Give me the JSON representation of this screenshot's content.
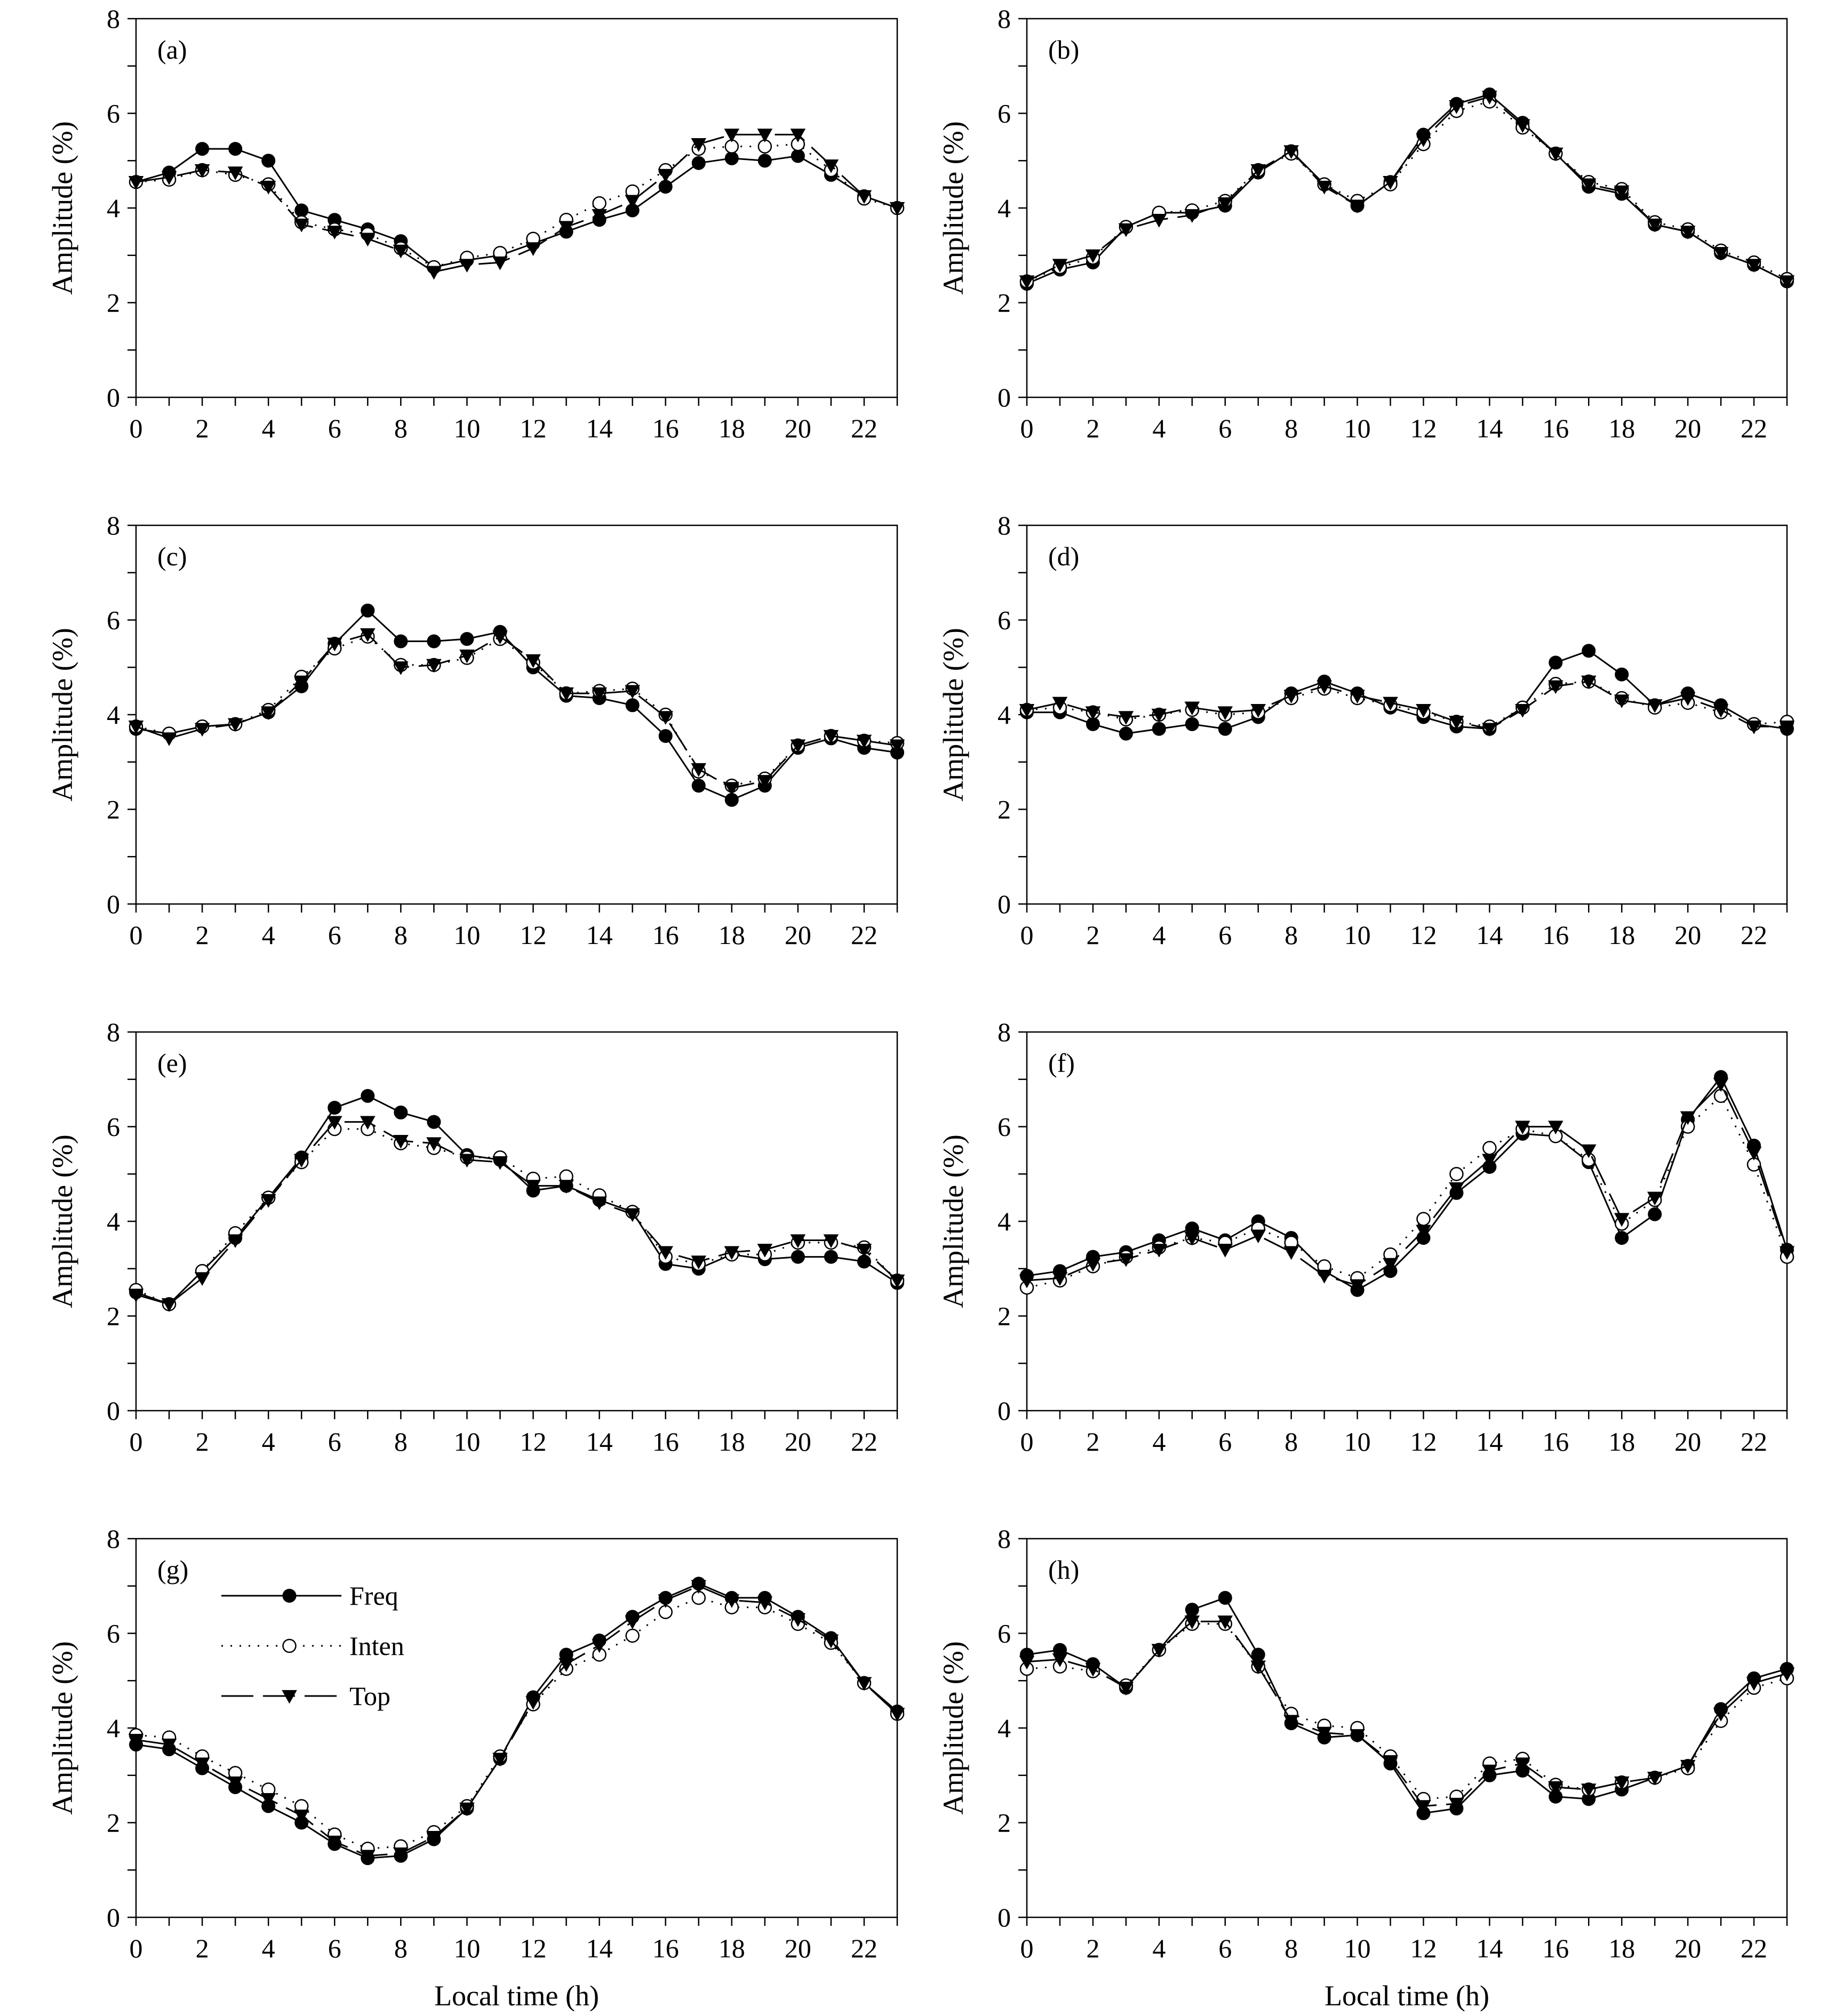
{
  "figure": {
    "x_axis_title": "Local time (h)",
    "y_axis_title": "Amplitude (%)",
    "legend": [
      {
        "key": "freq",
        "label": "Freq"
      },
      {
        "key": "inten",
        "label": "Inten"
      },
      {
        "key": "top",
        "label": "Top"
      }
    ]
  },
  "chart_data": [
    {
      "type": "line",
      "panel": "(a)",
      "x": [
        0,
        1,
        2,
        3,
        4,
        5,
        6,
        7,
        8,
        9,
        10,
        11,
        12,
        13,
        14,
        15,
        16,
        17,
        18,
        19,
        20,
        21,
        22,
        23
      ],
      "xlim": [
        0,
        23
      ],
      "ylim": [
        0,
        8
      ],
      "xticks": [
        "0",
        "2",
        "4",
        "6",
        "8",
        "10",
        "12",
        "14",
        "16",
        "18",
        "20",
        "22"
      ],
      "yticks": [
        "0",
        "2",
        "4",
        "6",
        "8"
      ],
      "xlabel": "",
      "ylabel": "Amplitude (%)",
      "series": [
        {
          "name": "Freq",
          "values": [
            4.55,
            4.75,
            5.25,
            5.25,
            5.0,
            3.95,
            3.75,
            3.55,
            3.3,
            2.75,
            2.9,
            3.0,
            3.25,
            3.5,
            3.75,
            3.95,
            4.45,
            4.95,
            5.05,
            5.0,
            5.1,
            4.7,
            4.25,
            4.0
          ]
        },
        {
          "name": "Inten",
          "values": [
            4.55,
            4.6,
            4.8,
            4.7,
            4.5,
            3.7,
            3.55,
            3.45,
            3.15,
            2.75,
            2.95,
            3.05,
            3.35,
            3.75,
            4.1,
            4.35,
            4.8,
            5.25,
            5.3,
            5.3,
            5.35,
            4.8,
            4.2,
            4.0
          ]
        },
        {
          "name": "Top",
          "values": [
            4.55,
            4.65,
            4.8,
            4.75,
            4.45,
            3.65,
            3.5,
            3.35,
            3.1,
            2.65,
            2.8,
            2.85,
            3.15,
            3.6,
            3.85,
            4.15,
            4.7,
            5.35,
            5.55,
            5.55,
            5.55,
            4.9,
            4.25,
            4.0
          ]
        }
      ]
    },
    {
      "type": "line",
      "panel": "(b)",
      "x": [
        0,
        1,
        2,
        3,
        4,
        5,
        6,
        7,
        8,
        9,
        10,
        11,
        12,
        13,
        14,
        15,
        16,
        17,
        18,
        19,
        20,
        21,
        22,
        23
      ],
      "xlim": [
        0,
        23
      ],
      "ylim": [
        0,
        8
      ],
      "xticks": [
        "0",
        "2",
        "4",
        "6",
        "8",
        "10",
        "12",
        "14",
        "16",
        "18",
        "20",
        "22"
      ],
      "yticks": [
        "0",
        "2",
        "4",
        "6",
        "8"
      ],
      "xlabel": "",
      "ylabel": "Amplitude (%)",
      "series": [
        {
          "name": "Freq",
          "values": [
            2.4,
            2.7,
            2.85,
            3.6,
            3.9,
            3.9,
            4.05,
            4.75,
            5.2,
            4.5,
            4.05,
            4.55,
            5.55,
            6.2,
            6.4,
            5.8,
            5.15,
            4.45,
            4.3,
            3.65,
            3.5,
            3.05,
            2.8,
            2.45
          ]
        },
        {
          "name": "Inten",
          "values": [
            2.45,
            2.75,
            2.95,
            3.6,
            3.9,
            3.95,
            4.15,
            4.8,
            5.15,
            4.5,
            4.15,
            4.5,
            5.35,
            6.05,
            6.25,
            5.7,
            5.15,
            4.55,
            4.4,
            3.7,
            3.55,
            3.1,
            2.85,
            2.5
          ]
        },
        {
          "name": "Top",
          "values": [
            2.45,
            2.8,
            3.0,
            3.55,
            3.75,
            3.85,
            4.1,
            4.8,
            5.2,
            4.45,
            4.05,
            4.55,
            5.45,
            6.15,
            6.35,
            5.75,
            5.15,
            4.5,
            4.35,
            3.65,
            3.5,
            3.05,
            2.8,
            2.45
          ]
        }
      ]
    },
    {
      "type": "line",
      "panel": "(c)",
      "x": [
        0,
        1,
        2,
        3,
        4,
        5,
        6,
        7,
        8,
        9,
        10,
        11,
        12,
        13,
        14,
        15,
        16,
        17,
        18,
        19,
        20,
        21,
        22,
        23
      ],
      "xlim": [
        0,
        23
      ],
      "ylim": [
        0,
        8
      ],
      "xticks": [
        "0",
        "2",
        "4",
        "6",
        "8",
        "10",
        "12",
        "14",
        "16",
        "18",
        "20",
        "22"
      ],
      "yticks": [
        "0",
        "2",
        "4",
        "6",
        "8"
      ],
      "xlabel": "",
      "ylabel": "Amplitude (%)",
      "series": [
        {
          "name": "Freq",
          "values": [
            3.7,
            3.6,
            3.75,
            3.8,
            4.05,
            4.6,
            5.5,
            6.2,
            5.55,
            5.55,
            5.6,
            5.75,
            5.0,
            4.4,
            4.35,
            4.2,
            3.55,
            2.5,
            2.2,
            2.5,
            3.3,
            3.5,
            3.3,
            3.2
          ]
        },
        {
          "name": "Inten",
          "values": [
            3.75,
            3.6,
            3.75,
            3.8,
            4.1,
            4.8,
            5.4,
            5.65,
            5.05,
            5.05,
            5.2,
            5.6,
            5.1,
            4.45,
            4.5,
            4.55,
            4.0,
            2.8,
            2.5,
            2.65,
            3.35,
            3.55,
            3.45,
            3.4
          ]
        },
        {
          "name": "Top",
          "values": [
            3.75,
            3.5,
            3.7,
            3.8,
            4.05,
            4.7,
            5.5,
            5.7,
            5.0,
            5.05,
            5.25,
            5.65,
            5.15,
            4.45,
            4.45,
            4.5,
            3.95,
            2.85,
            2.45,
            2.6,
            3.35,
            3.55,
            3.45,
            3.35
          ]
        }
      ]
    },
    {
      "type": "line",
      "panel": "(d)",
      "x": [
        0,
        1,
        2,
        3,
        4,
        5,
        6,
        7,
        8,
        9,
        10,
        11,
        12,
        13,
        14,
        15,
        16,
        17,
        18,
        19,
        20,
        21,
        22,
        23
      ],
      "xlim": [
        0,
        23
      ],
      "ylim": [
        0,
        8
      ],
      "xticks": [
        "0",
        "2",
        "4",
        "6",
        "8",
        "10",
        "12",
        "14",
        "16",
        "18",
        "20",
        "22"
      ],
      "yticks": [
        "0",
        "2",
        "4",
        "6",
        "8"
      ],
      "xlabel": "",
      "ylabel": "Amplitude (%)",
      "series": [
        {
          "name": "Freq",
          "values": [
            4.05,
            4.05,
            3.8,
            3.6,
            3.7,
            3.8,
            3.7,
            3.95,
            4.45,
            4.7,
            4.45,
            4.15,
            3.95,
            3.75,
            3.7,
            4.15,
            5.1,
            5.35,
            4.85,
            4.2,
            4.45,
            4.2,
            3.8,
            3.7
          ]
        },
        {
          "name": "Inten",
          "values": [
            4.1,
            4.15,
            4.05,
            3.9,
            4.0,
            4.1,
            4.0,
            4.05,
            4.35,
            4.55,
            4.35,
            4.2,
            4.05,
            3.85,
            3.75,
            4.15,
            4.65,
            4.7,
            4.35,
            4.15,
            4.25,
            4.05,
            3.8,
            3.85
          ]
        },
        {
          "name": "Top",
          "values": [
            4.1,
            4.25,
            4.05,
            3.95,
            4.0,
            4.15,
            4.05,
            4.1,
            4.4,
            4.6,
            4.4,
            4.25,
            4.1,
            3.85,
            3.7,
            4.1,
            4.6,
            4.7,
            4.3,
            4.2,
            4.35,
            4.1,
            3.75,
            3.75
          ]
        }
      ]
    },
    {
      "type": "line",
      "panel": "(e)",
      "x": [
        0,
        1,
        2,
        3,
        4,
        5,
        6,
        7,
        8,
        9,
        10,
        11,
        12,
        13,
        14,
        15,
        16,
        17,
        18,
        19,
        20,
        21,
        22,
        23
      ],
      "xlim": [
        0,
        23
      ],
      "ylim": [
        0,
        8
      ],
      "xticks": [
        "0",
        "2",
        "4",
        "6",
        "8",
        "10",
        "12",
        "14",
        "16",
        "18",
        "20",
        "22"
      ],
      "yticks": [
        "0",
        "2",
        "4",
        "6",
        "8"
      ],
      "xlabel": "",
      "ylabel": "Amplitude (%)",
      "series": [
        {
          "name": "Freq",
          "values": [
            2.5,
            2.25,
            2.95,
            3.65,
            4.5,
            5.35,
            6.4,
            6.65,
            6.3,
            6.1,
            5.4,
            5.3,
            4.65,
            4.75,
            4.45,
            4.2,
            3.1,
            3.0,
            3.3,
            3.2,
            3.25,
            3.25,
            3.15,
            2.7
          ]
        },
        {
          "name": "Inten",
          "values": [
            2.55,
            2.25,
            2.95,
            3.75,
            4.5,
            5.25,
            5.95,
            5.95,
            5.65,
            5.55,
            5.35,
            5.35,
            4.9,
            4.95,
            4.55,
            4.2,
            3.25,
            3.1,
            3.3,
            3.3,
            3.55,
            3.55,
            3.45,
            2.75
          ]
        },
        {
          "name": "Top",
          "values": [
            2.45,
            2.25,
            2.8,
            3.6,
            4.45,
            5.3,
            6.1,
            6.1,
            5.7,
            5.65,
            5.3,
            5.25,
            4.75,
            4.75,
            4.4,
            4.15,
            3.35,
            3.15,
            3.35,
            3.4,
            3.6,
            3.6,
            3.4,
            2.75
          ]
        }
      ]
    },
    {
      "type": "line",
      "panel": "(f)",
      "x": [
        0,
        1,
        2,
        3,
        4,
        5,
        6,
        7,
        8,
        9,
        10,
        11,
        12,
        13,
        14,
        15,
        16,
        17,
        18,
        19,
        20,
        21,
        22,
        23
      ],
      "xlim": [
        0,
        23
      ],
      "ylim": [
        0,
        8
      ],
      "xticks": [
        "0",
        "2",
        "4",
        "6",
        "8",
        "10",
        "12",
        "14",
        "16",
        "18",
        "20",
        "22"
      ],
      "yticks": [
        "0",
        "2",
        "4",
        "6",
        "8"
      ],
      "xlabel": "",
      "ylabel": "Amplitude (%)",
      "series": [
        {
          "name": "Freq",
          "values": [
            2.85,
            2.95,
            3.25,
            3.35,
            3.6,
            3.85,
            3.6,
            4.0,
            3.65,
            2.95,
            2.55,
            2.95,
            3.65,
            4.6,
            5.15,
            5.85,
            5.8,
            5.25,
            3.65,
            4.15,
            6.15,
            7.05,
            5.6,
            3.4
          ]
        },
        {
          "name": "Inten",
          "values": [
            2.6,
            2.75,
            3.05,
            3.25,
            3.45,
            3.65,
            3.55,
            3.85,
            3.55,
            3.05,
            2.8,
            3.3,
            4.05,
            5.0,
            5.55,
            5.95,
            5.8,
            5.3,
            3.95,
            4.45,
            6.0,
            6.65,
            5.2,
            3.25
          ]
        },
        {
          "name": "Top",
          "values": [
            2.75,
            2.8,
            3.1,
            3.2,
            3.4,
            3.65,
            3.4,
            3.7,
            3.35,
            2.85,
            2.65,
            3.1,
            3.8,
            4.7,
            5.3,
            6.0,
            6.0,
            5.5,
            4.05,
            4.5,
            6.2,
            6.9,
            5.45,
            3.35
          ]
        }
      ]
    },
    {
      "type": "line",
      "panel": "(g)",
      "x": [
        0,
        1,
        2,
        3,
        4,
        5,
        6,
        7,
        8,
        9,
        10,
        11,
        12,
        13,
        14,
        15,
        16,
        17,
        18,
        19,
        20,
        21,
        22,
        23
      ],
      "xlim": [
        0,
        23
      ],
      "ylim": [
        0,
        8
      ],
      "xticks": [
        "0",
        "2",
        "4",
        "6",
        "8",
        "10",
        "12",
        "14",
        "16",
        "18",
        "20",
        "22"
      ],
      "yticks": [
        "0",
        "2",
        "4",
        "6",
        "8"
      ],
      "xlabel": "Local time (h)",
      "ylabel": "Amplitude (%)",
      "series": [
        {
          "name": "Freq",
          "values": [
            3.65,
            3.55,
            3.15,
            2.75,
            2.35,
            2.0,
            1.55,
            1.25,
            1.3,
            1.65,
            2.3,
            3.35,
            4.65,
            5.55,
            5.85,
            6.35,
            6.75,
            7.05,
            6.75,
            6.75,
            6.35,
            5.9,
            4.95,
            4.35
          ]
        },
        {
          "name": "Inten",
          "values": [
            3.85,
            3.8,
            3.4,
            3.05,
            2.7,
            2.35,
            1.75,
            1.45,
            1.5,
            1.8,
            2.35,
            3.4,
            4.5,
            5.25,
            5.55,
            5.95,
            6.45,
            6.75,
            6.55,
            6.55,
            6.2,
            5.8,
            4.95,
            4.3
          ]
        },
        {
          "name": "Top",
          "values": [
            3.75,
            3.65,
            3.25,
            2.85,
            2.5,
            2.15,
            1.6,
            1.3,
            1.35,
            1.7,
            2.3,
            3.35,
            4.55,
            5.35,
            5.75,
            6.25,
            6.7,
            7.0,
            6.7,
            6.65,
            6.3,
            5.85,
            4.95,
            4.3
          ]
        }
      ]
    },
    {
      "type": "line",
      "panel": "(h)",
      "x": [
        0,
        1,
        2,
        3,
        4,
        5,
        6,
        7,
        8,
        9,
        10,
        11,
        12,
        13,
        14,
        15,
        16,
        17,
        18,
        19,
        20,
        21,
        22,
        23
      ],
      "xlim": [
        0,
        23
      ],
      "ylim": [
        0,
        8
      ],
      "xticks": [
        "0",
        "2",
        "4",
        "6",
        "8",
        "10",
        "12",
        "14",
        "16",
        "18",
        "20",
        "22"
      ],
      "yticks": [
        "0",
        "2",
        "4",
        "6",
        "8"
      ],
      "xlabel": "Local time (h)",
      "ylabel": "Amplitude (%)",
      "series": [
        {
          "name": "Freq",
          "values": [
            5.55,
            5.65,
            5.35,
            4.85,
            5.65,
            6.5,
            6.75,
            5.55,
            4.1,
            3.8,
            3.85,
            3.25,
            2.2,
            2.3,
            3.0,
            3.1,
            2.55,
            2.5,
            2.7,
            2.95,
            3.2,
            4.4,
            5.05,
            5.25
          ]
        },
        {
          "name": "Inten",
          "values": [
            5.25,
            5.3,
            5.2,
            4.9,
            5.65,
            6.2,
            6.2,
            5.3,
            4.3,
            4.05,
            4.0,
            3.4,
            2.5,
            2.55,
            3.25,
            3.35,
            2.8,
            2.7,
            2.85,
            2.95,
            3.15,
            4.15,
            4.85,
            5.05
          ]
        },
        {
          "name": "Top",
          "values": [
            5.4,
            5.45,
            5.25,
            4.85,
            5.65,
            6.25,
            6.25,
            5.3,
            4.15,
            3.9,
            3.85,
            3.3,
            2.35,
            2.4,
            3.1,
            3.25,
            2.75,
            2.7,
            2.85,
            2.95,
            3.2,
            4.3,
            4.95,
            5.15
          ]
        }
      ]
    }
  ]
}
